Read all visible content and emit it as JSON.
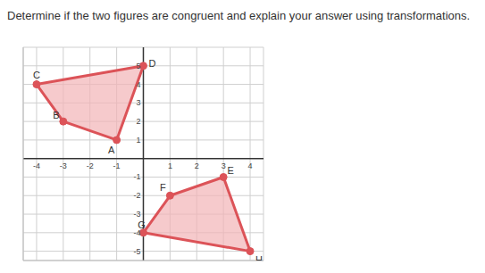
{
  "chart_data": {
    "type": "scatter",
    "title": "Determine if the two figures are congruent and explain your answer using transformations.",
    "xlim": [
      -4.5,
      4.5
    ],
    "ylim": [
      -5.5,
      6
    ],
    "xticks": [
      -4,
      -3,
      -2,
      -1,
      1,
      2,
      3,
      4
    ],
    "yticks": [
      -5,
      -4,
      -3,
      -2,
      -1,
      1,
      2,
      3,
      4,
      5
    ],
    "grid": true,
    "series": [
      {
        "labels": [
          "A",
          "B",
          "C",
          "D"
        ],
        "x": [
          -1,
          -3,
          -4,
          0
        ],
        "y": [
          1,
          2,
          4,
          5
        ],
        "color": "#dc5358"
      },
      {
        "labels": [
          "E",
          "F",
          "G",
          "H"
        ],
        "x": [
          3,
          1,
          0,
          4
        ],
        "y": [
          -1,
          -2,
          -4,
          -5
        ],
        "color": "#dc5358"
      }
    ]
  }
}
